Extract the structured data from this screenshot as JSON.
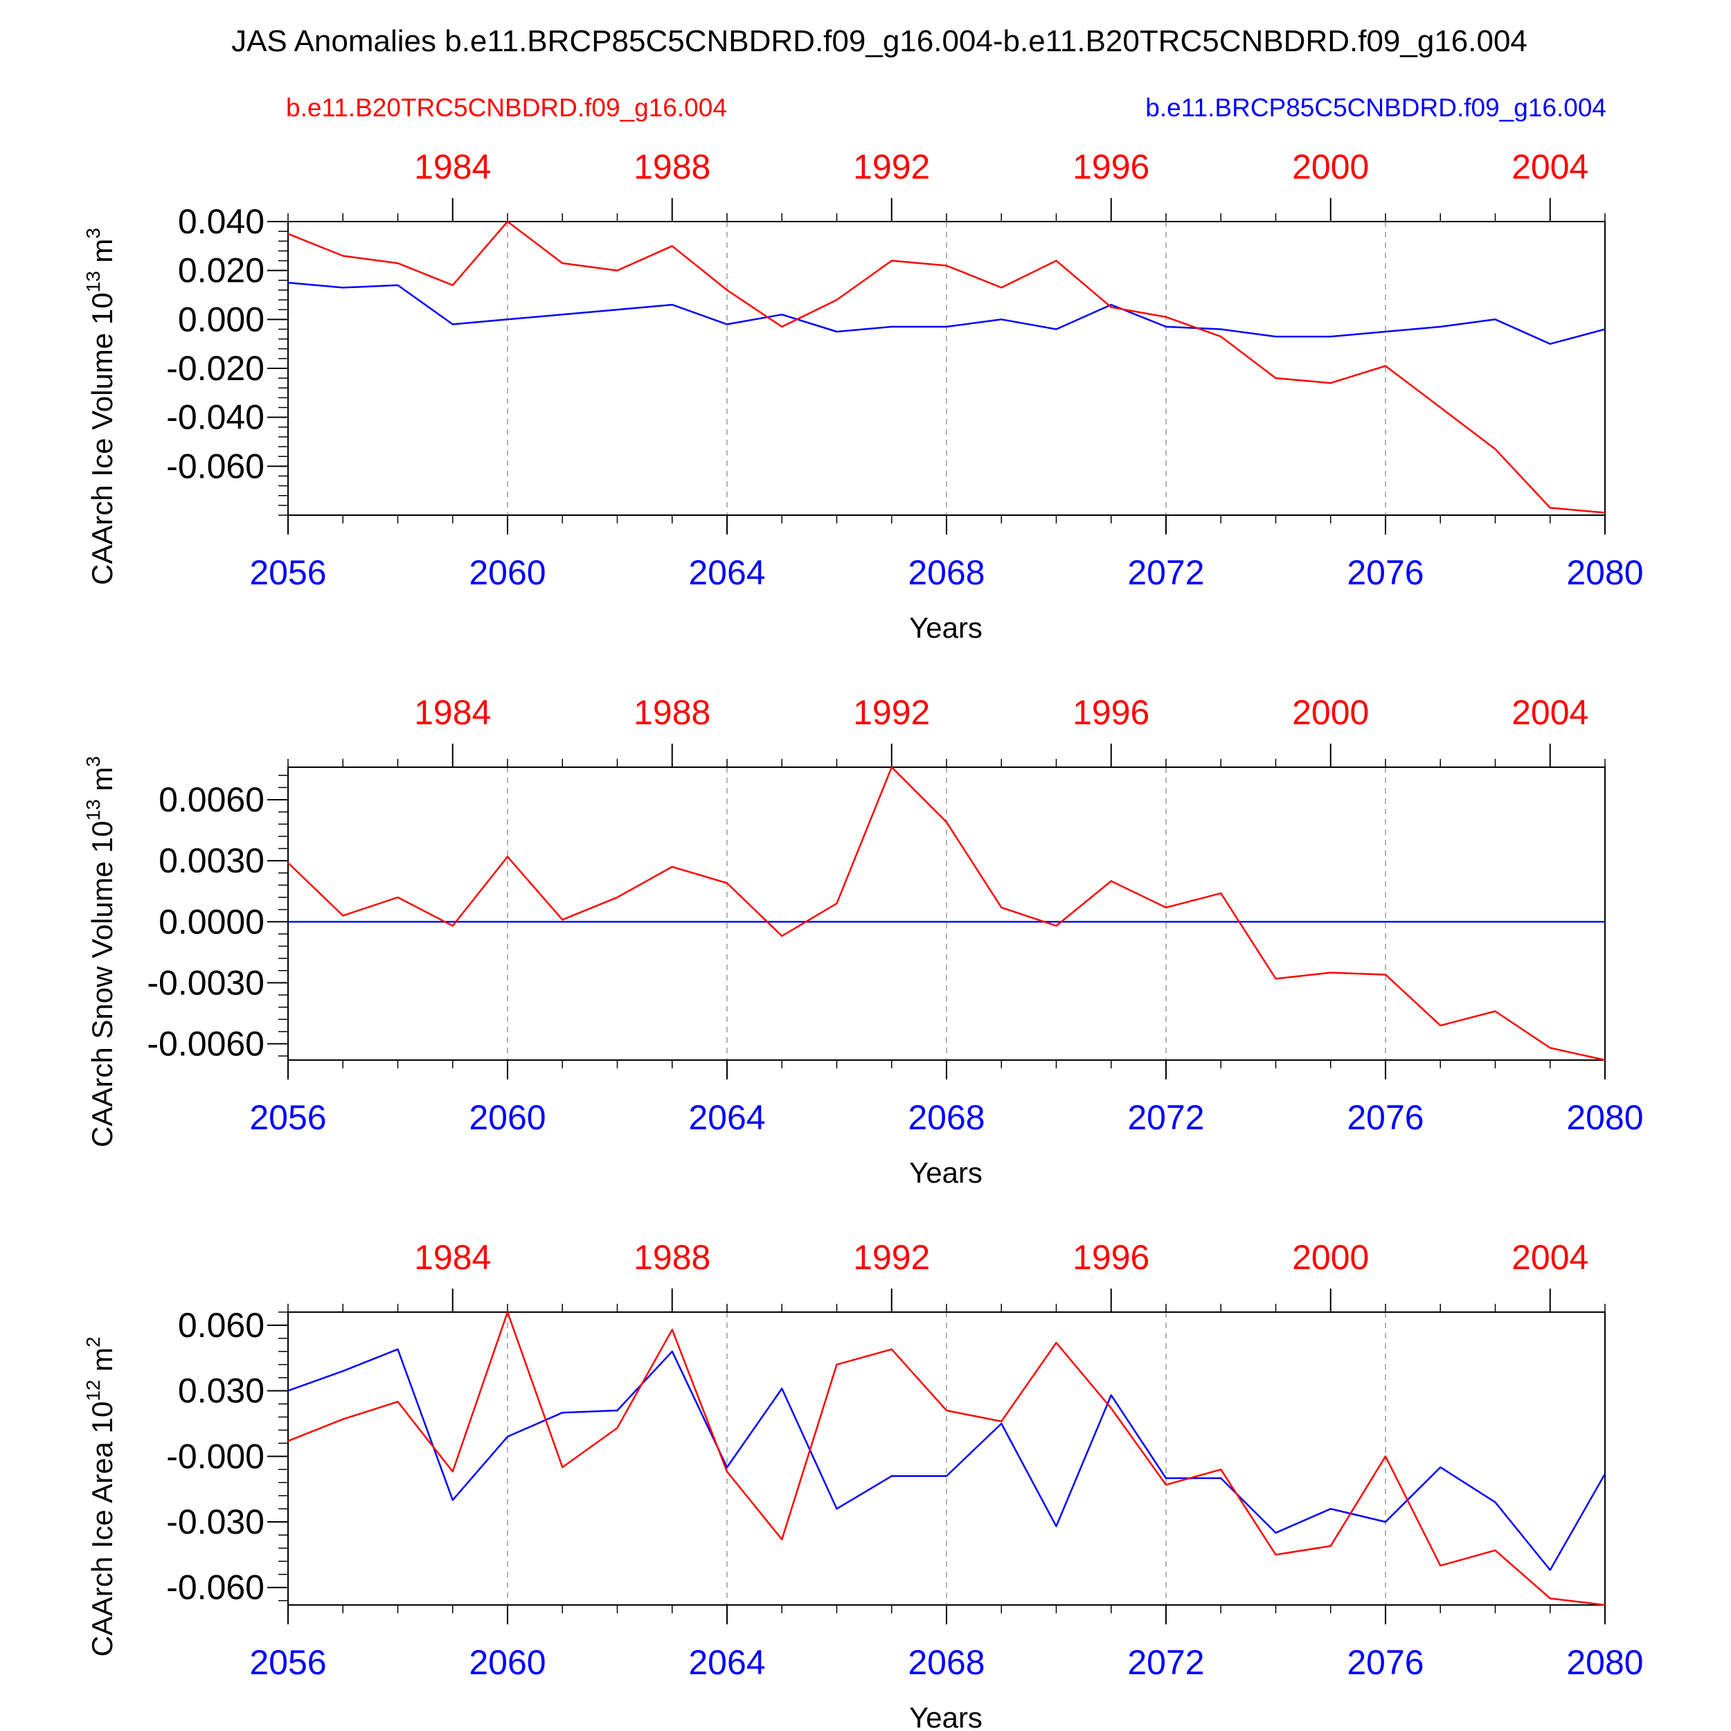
{
  "title": "JAS Anomalies b.e11.BRCP85C5CNBDRD.f09_g16.004-b.e11.B20TRC5CNBDRD.f09_g16.004",
  "legend": {
    "red_label": "b.e11.B20TRC5CNBDRD.f09_g16.004",
    "blue_label": "b.e11.BRCP85C5CNBDRD.f09_g16.004"
  },
  "colors": {
    "red": "#ff0000",
    "blue": "#0000ff",
    "axis": "#000000",
    "grid": "#9a9a9a"
  },
  "chart_data": [
    {
      "type": "line",
      "ylabel_main": "CAArch Ice Volume 10",
      "ylabel_exp": "13",
      "ylabel_unit": " m",
      "ylabel_unit_exp": "3",
      "xlabel": "Years",
      "x_bottom": [
        2056,
        2057,
        2058,
        2059,
        2060,
        2061,
        2062,
        2063,
        2064,
        2065,
        2066,
        2067,
        2068,
        2069,
        2070,
        2071,
        2072,
        2073,
        2074,
        2075,
        2076,
        2077,
        2078,
        2079,
        2080
      ],
      "x_top_ticks": [
        "1984",
        "1988",
        "1992",
        "1996",
        "2000",
        "2004"
      ],
      "x_bottom_ticks": [
        "2056",
        "2060",
        "2064",
        "2068",
        "2072",
        "2076",
        "2080"
      ],
      "ylim": [
        -0.08,
        0.04
      ],
      "yticks": [
        "0.040",
        "0.020",
        "0.000",
        "-0.020",
        "-0.040",
        "-0.060"
      ],
      "series": [
        {
          "color": "red",
          "values": [
            0.035,
            0.026,
            0.023,
            0.014,
            0.04,
            0.023,
            0.02,
            0.03,
            0.012,
            -0.003,
            0.008,
            0.024,
            0.022,
            0.013,
            0.024,
            0.005,
            0.001,
            -0.007,
            -0.024,
            -0.026,
            -0.019,
            -0.036,
            -0.053,
            -0.077,
            -0.079
          ]
        },
        {
          "color": "blue",
          "values": [
            0.015,
            0.013,
            0.014,
            -0.002,
            0.0,
            0.002,
            0.004,
            0.006,
            -0.002,
            0.002,
            -0.005,
            -0.003,
            -0.003,
            0.0,
            -0.004,
            0.006,
            -0.003,
            -0.004,
            -0.007,
            -0.007,
            -0.005,
            -0.003,
            0.0,
            -0.01,
            -0.004
          ]
        }
      ]
    },
    {
      "type": "line",
      "ylabel_main": "CAArch Snow Volume 10",
      "ylabel_exp": "13",
      "ylabel_unit": " m",
      "ylabel_unit_exp": "3",
      "xlabel": "Years",
      "x_bottom": [
        2056,
        2057,
        2058,
        2059,
        2060,
        2061,
        2062,
        2063,
        2064,
        2065,
        2066,
        2067,
        2068,
        2069,
        2070,
        2071,
        2072,
        2073,
        2074,
        2075,
        2076,
        2077,
        2078,
        2079,
        2080
      ],
      "x_top_ticks": [
        "1984",
        "1988",
        "1992",
        "1996",
        "2000",
        "2004"
      ],
      "x_bottom_ticks": [
        "2056",
        "2060",
        "2064",
        "2068",
        "2072",
        "2076",
        "2080"
      ],
      "ylim": [
        -0.0068,
        0.0076
      ],
      "yticks": [
        "0.0060",
        "0.0030",
        "0.0000",
        "-0.0030",
        "-0.0060"
      ],
      "series": [
        {
          "color": "red",
          "values": [
            0.0029,
            0.0003,
            0.0012,
            -0.0002,
            0.0032,
            0.0001,
            0.0012,
            0.0027,
            0.0019,
            -0.0007,
            0.0009,
            0.0076,
            0.0049,
            0.0007,
            -0.0002,
            0.002,
            0.0007,
            0.0014,
            -0.0028,
            -0.0025,
            -0.0026,
            -0.0051,
            -0.0044,
            -0.0062,
            -0.0068
          ]
        },
        {
          "color": "blue",
          "values": [
            0.0,
            0.0,
            0.0,
            0.0,
            0.0,
            0.0,
            0.0,
            0.0,
            0.0,
            0.0,
            0.0,
            0.0,
            0.0,
            0.0,
            0.0,
            0.0,
            0.0,
            0.0,
            0.0,
            0.0,
            0.0,
            0.0,
            0.0,
            0.0,
            0.0
          ]
        }
      ]
    },
    {
      "type": "line",
      "ylabel_main": "CAArch Ice Area 10",
      "ylabel_exp": "12",
      "ylabel_unit": " m",
      "ylabel_unit_exp": "2",
      "xlabel": "Years",
      "x_bottom": [
        2056,
        2057,
        2058,
        2059,
        2060,
        2061,
        2062,
        2063,
        2064,
        2065,
        2066,
        2067,
        2068,
        2069,
        2070,
        2071,
        2072,
        2073,
        2074,
        2075,
        2076,
        2077,
        2078,
        2079,
        2080
      ],
      "x_top_ticks": [
        "1984",
        "1988",
        "1992",
        "1996",
        "2000",
        "2004"
      ],
      "x_bottom_ticks": [
        "2056",
        "2060",
        "2064",
        "2068",
        "2072",
        "2076",
        "2080"
      ],
      "ylim": [
        -0.068,
        0.066
      ],
      "yticks": [
        "0.060",
        "0.030",
        "-0.000",
        "-0.030",
        "-0.060"
      ],
      "series": [
        {
          "color": "red",
          "values": [
            0.007,
            0.017,
            0.025,
            -0.007,
            0.066,
            -0.005,
            0.013,
            0.058,
            -0.007,
            -0.038,
            0.042,
            0.049,
            0.021,
            0.016,
            0.052,
            0.022,
            -0.013,
            -0.006,
            -0.045,
            -0.041,
            0.0,
            -0.05,
            -0.043,
            -0.065,
            -0.068
          ]
        },
        {
          "color": "blue",
          "values": [
            0.03,
            0.039,
            0.049,
            -0.02,
            0.009,
            0.02,
            0.021,
            0.048,
            -0.005,
            0.031,
            -0.024,
            -0.009,
            -0.009,
            0.015,
            -0.032,
            0.028,
            -0.01,
            -0.01,
            -0.035,
            -0.024,
            -0.03,
            -0.005,
            -0.021,
            -0.052,
            -0.008
          ]
        }
      ]
    }
  ]
}
